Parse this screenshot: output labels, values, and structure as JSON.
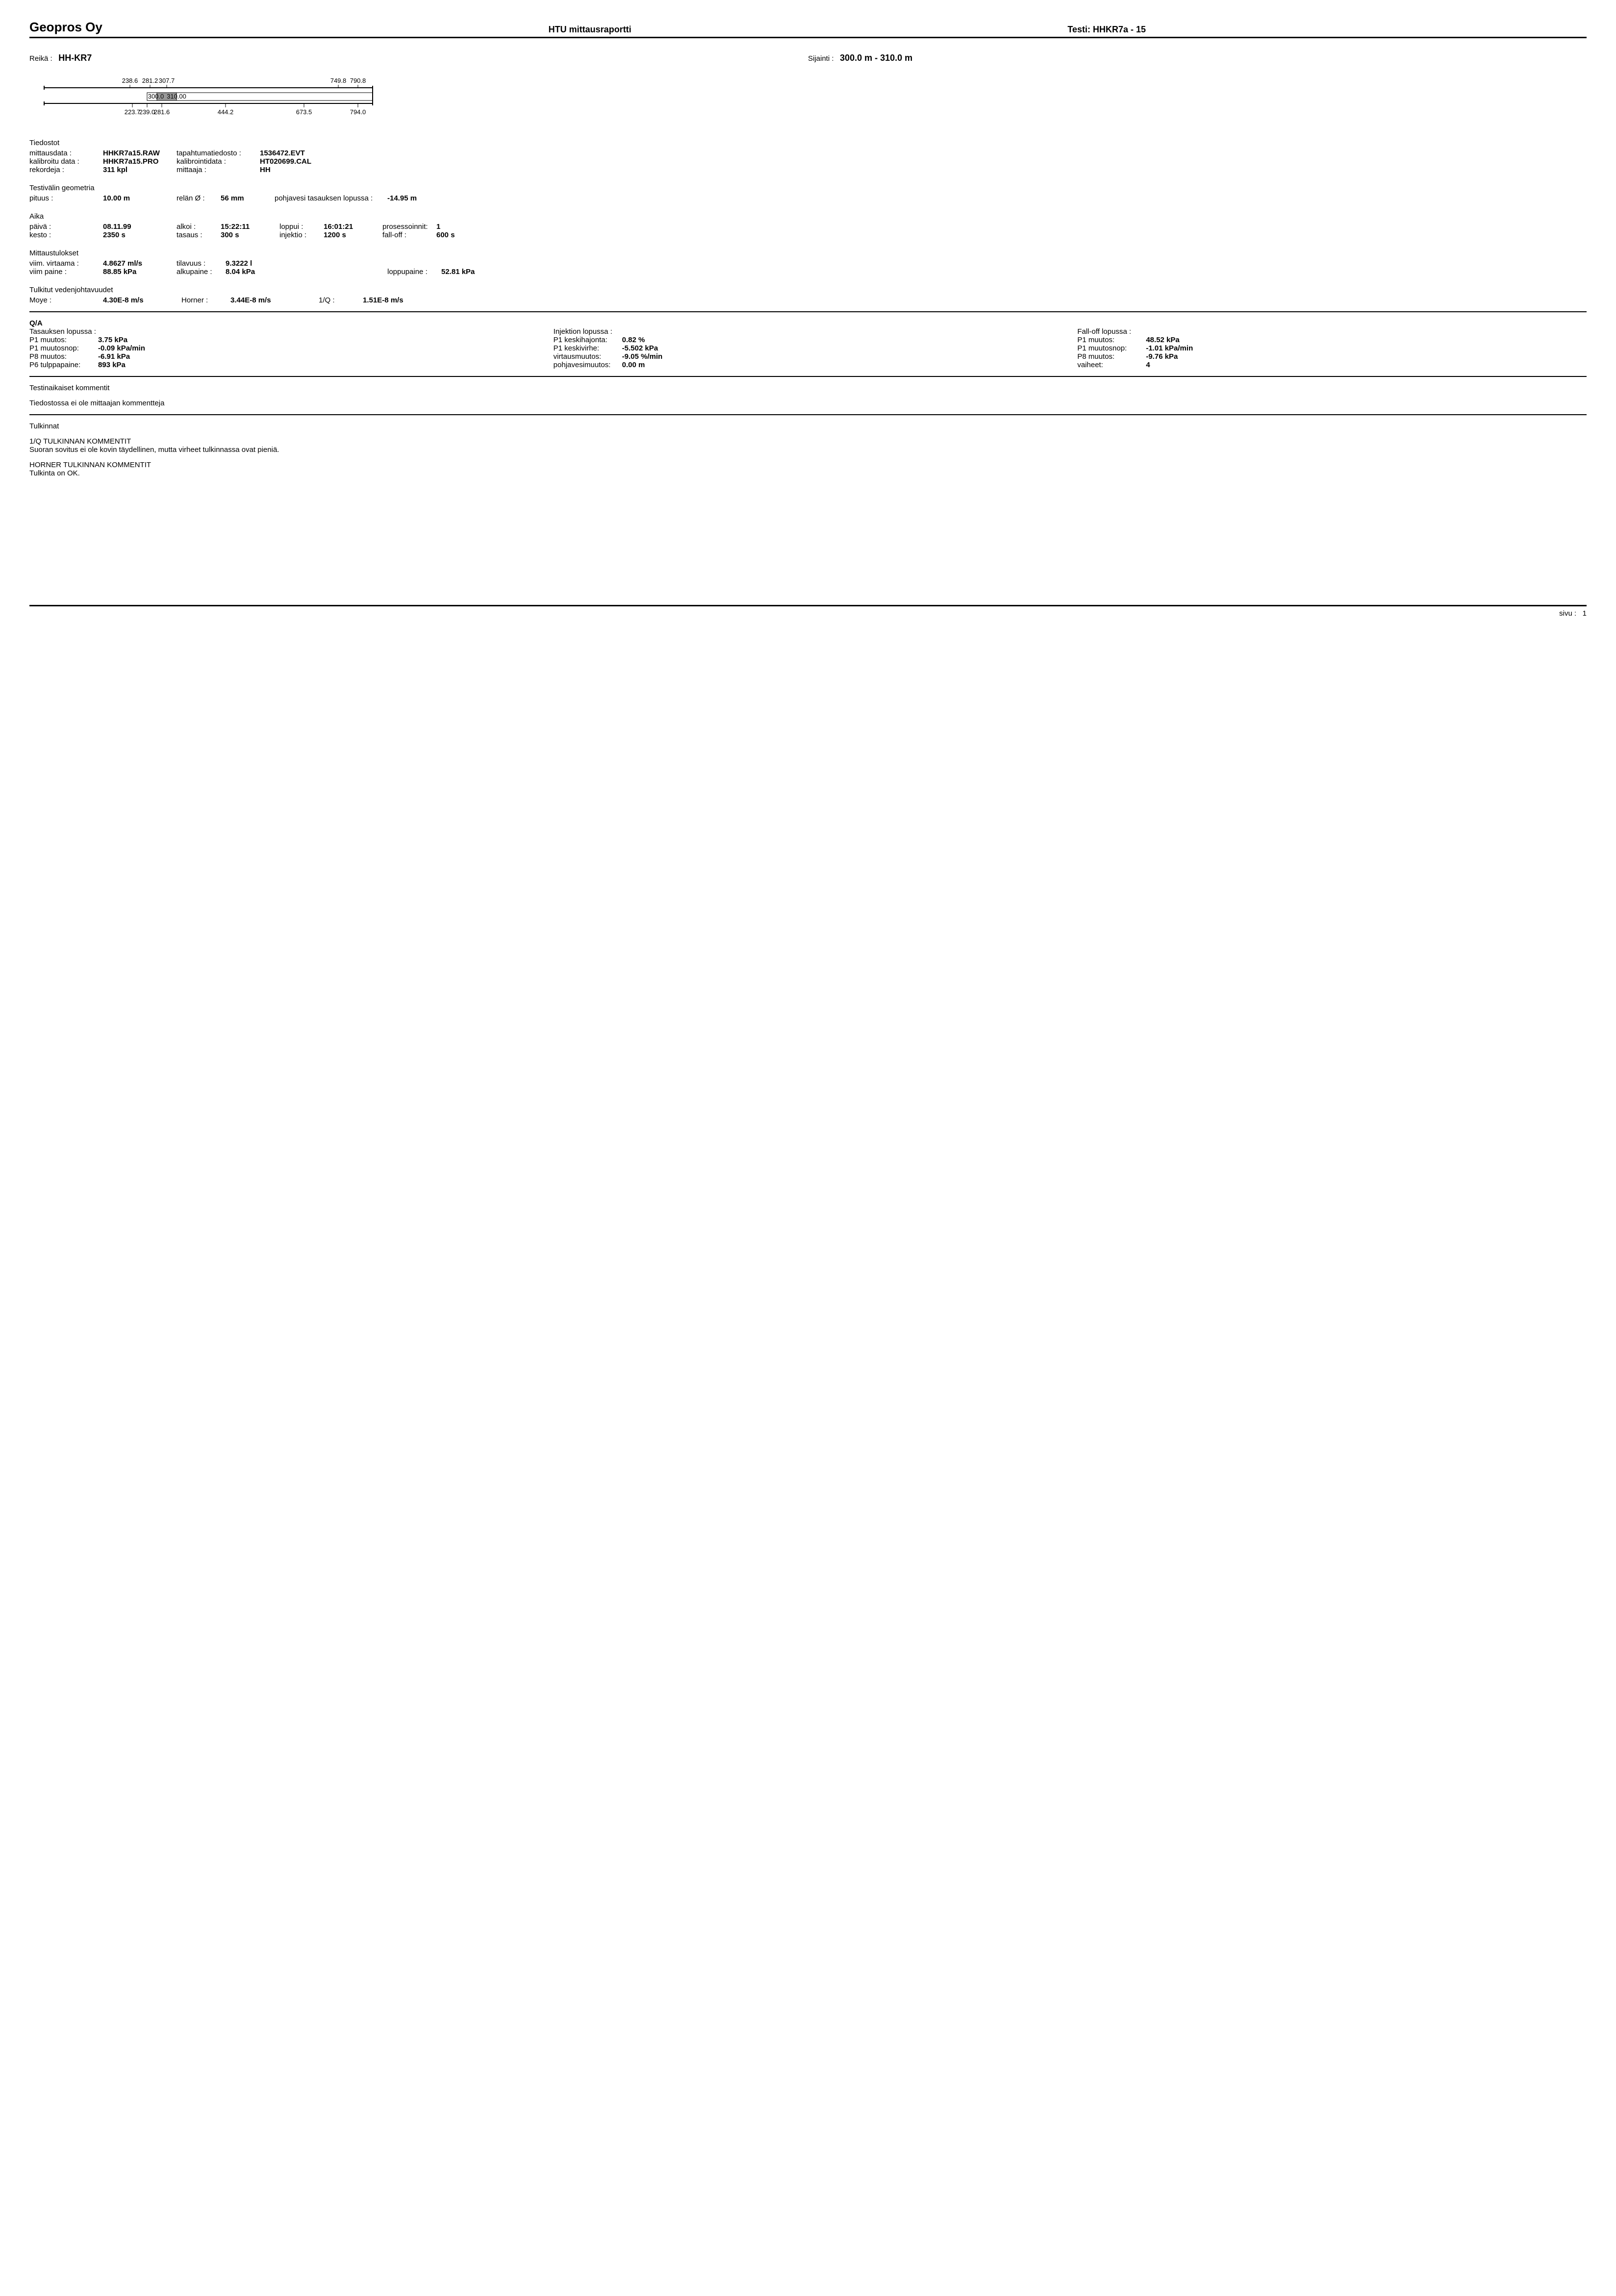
{
  "header": {
    "company": "Geopros Oy",
    "report_title": "HTU mittausraportti",
    "test_label": "Testi:",
    "test_id": "HHKR7a - 15"
  },
  "top": {
    "hole_label": "Reikä :",
    "hole": "HH-KR7",
    "loc_label": "Sijainti :",
    "loc": "300.0 m - 310.0 m"
  },
  "diagram": {
    "top_labels": [
      "238.6",
      "281.2",
      "307.7",
      "749.8",
      "790.8"
    ],
    "mid_labels": [
      "300.0",
      "310.00"
    ],
    "bot_labels": [
      "223.7",
      "239.0",
      "281.6",
      "444.2",
      "673.5",
      "794.0"
    ],
    "xpos_top": [
      205,
      246,
      280,
      630,
      670
    ],
    "xpos_mid": [
      258,
      300
    ],
    "xpos_bot": [
      210,
      240,
      270,
      400,
      560,
      670
    ]
  },
  "files": {
    "title": "Tiedostot",
    "rows": [
      {
        "l": "mittausdata :",
        "v": "HHKR7a15.RAW",
        "l2": "tapahtumatiedosto :",
        "v2": "1536472.EVT"
      },
      {
        "l": "kalibroitu data :",
        "v": "HHKR7a15.PRO",
        "l2": "kalibrointidata :",
        "v2": "HT020699.CAL"
      },
      {
        "l": "rekordeja :",
        "v": "311 kpl",
        "l2": "mittaaja :",
        "v2": "HH"
      }
    ]
  },
  "geom": {
    "title": "Testivälin geometria",
    "len_l": "pituus :",
    "len_v": "10.00 m",
    "dia_l": "relän Ø :",
    "dia_v": "56 mm",
    "gw_l": "pohjavesi tasauksen lopussa :",
    "gw_v": "-14.95 m"
  },
  "time": {
    "title": "Aika",
    "r1": [
      {
        "l": "päivä :",
        "v": "08.11.99"
      },
      {
        "l": "alkoi :",
        "v": "15:22:11"
      },
      {
        "l": "loppui :",
        "v": "16:01:21"
      },
      {
        "l": "prosessoinnit:",
        "v": "1"
      }
    ],
    "r2": [
      {
        "l": "kesto :",
        "v": "2350 s"
      },
      {
        "l": "tasaus :",
        "v": "300 s"
      },
      {
        "l": "injektio :",
        "v": "1200 s"
      },
      {
        "l": "fall-off :",
        "v": "600 s"
      }
    ]
  },
  "results": {
    "title": "Mittaustulokset",
    "r1": [
      {
        "l": "viim. virtaama :",
        "v": "4.8627 ml/s"
      },
      {
        "l": "tilavuus :",
        "v": "9.3222 l"
      },
      {
        "l": "",
        "v": ""
      },
      {
        "l": "",
        "v": ""
      }
    ],
    "r2": [
      {
        "l": "viim paine :",
        "v": "88.85 kPa"
      },
      {
        "l": "alkupaine :",
        "v": "8.04 kPa"
      },
      {
        "l": "",
        "v": ""
      },
      {
        "l": "loppupaine :",
        "v": "52.81 kPa"
      }
    ]
  },
  "cond": {
    "title": "Tulkitut vedenjohtavuudet",
    "r": [
      {
        "l": "Moye :",
        "v": "4.30E-8 m/s"
      },
      {
        "l": "Horner :",
        "v": "3.44E-8 m/s"
      },
      {
        "l": "1/Q :",
        "v": "1.51E-8 m/s"
      }
    ]
  },
  "qa": {
    "title": "Q/A",
    "cols": [
      {
        "head": "Tasauksen lopussa :",
        "rows": [
          {
            "l": "P1 muutos:",
            "v": "3.75 kPa"
          },
          {
            "l": "P1 muutosnop:",
            "v": "-0.09 kPa/min"
          },
          {
            "l": "P8 muutos:",
            "v": "-6.91 kPa"
          },
          {
            "l": "P6 tulppapaine:",
            "v": "893 kPa"
          }
        ]
      },
      {
        "head": "Injektion lopussa :",
        "rows": [
          {
            "l": "P1 keskihajonta:",
            "v": "0.82 %"
          },
          {
            "l": "P1 keskivirhe:",
            "v": "-5.502 kPa"
          },
          {
            "l": "virtausmuutos:",
            "v": "-9.05 %/min"
          },
          {
            "l": "pohjavesimuutos:",
            "v": "0.00 m"
          }
        ]
      },
      {
        "head": "Fall-off lopussa :",
        "rows": [
          {
            "l": "P1 muutos:",
            "v": "48.52 kPa"
          },
          {
            "l": "P1 muutosnop:",
            "v": "-1.01 kPa/min"
          },
          {
            "l": "P8 muutos:",
            "v": "-9.76 kPa"
          },
          {
            "l": "vaiheet:",
            "v": "4"
          }
        ]
      }
    ]
  },
  "comments": {
    "title": "Testinaikaiset kommentit",
    "text": "Tiedostossa ei ole mittaajan kommentteja"
  },
  "interp": {
    "title": "Tulkinnat",
    "s1_title": "1/Q TULKINNAN KOMMENTIT",
    "s1_text": "Suoran sovitus ei ole kovin täydellinen, mutta virheet tulkinnassa ovat pieniä.",
    "s2_title": "HORNER TULKINNAN KOMMENTIT",
    "s2_text": "Tulkinta on OK."
  },
  "footer": {
    "page_l": "sivu :",
    "page_v": "1"
  }
}
